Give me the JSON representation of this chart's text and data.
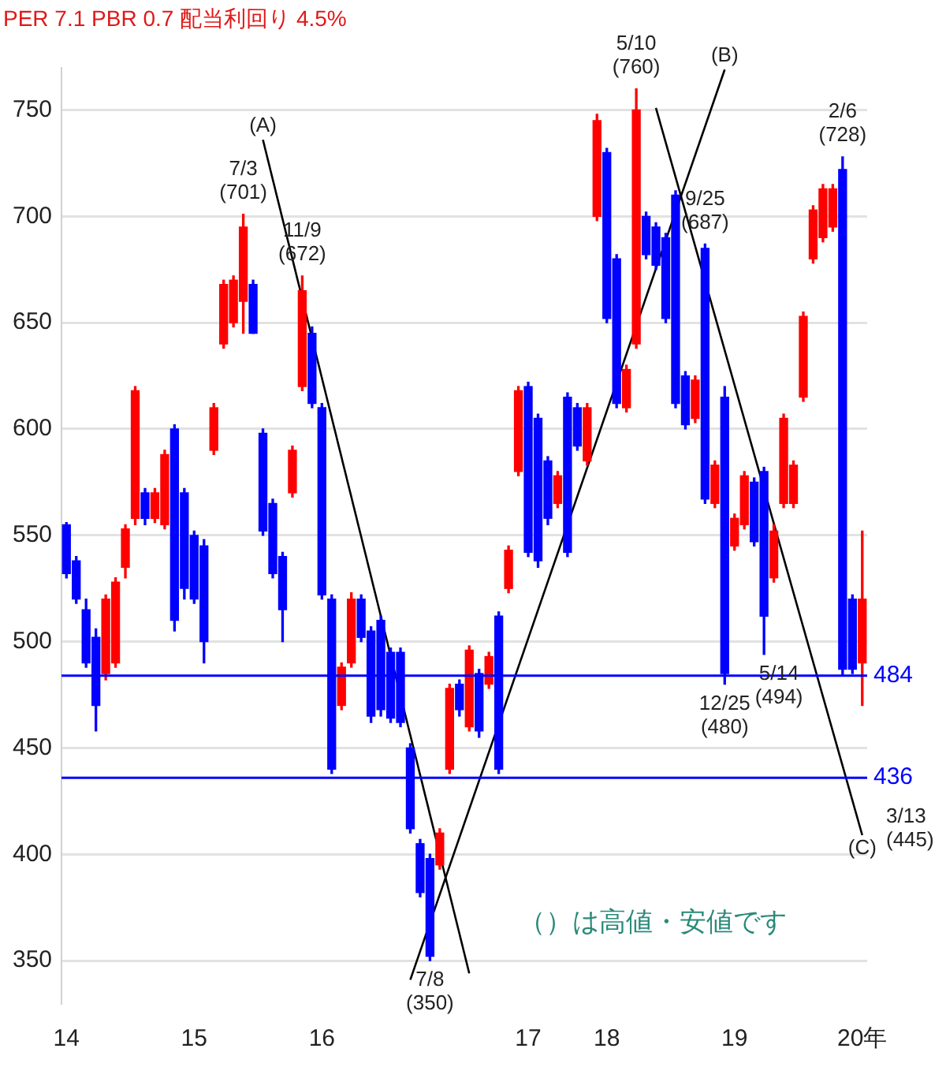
{
  "chart_data": {
    "type": "candlestick",
    "title": "PER 7.1 PBR 0.7 配当利回り 4.5%",
    "categories": [
      "14",
      null,
      null,
      null,
      null,
      null,
      null,
      null,
      null,
      null,
      null,
      null,
      null,
      "15",
      null,
      null,
      null,
      null,
      null,
      null,
      null,
      null,
      null,
      null,
      null,
      null,
      "16",
      null,
      null,
      null,
      null,
      null,
      null,
      null,
      null,
      null,
      null,
      null,
      null,
      null,
      null,
      null,
      null,
      null,
      null,
      null,
      null,
      "17",
      null,
      null,
      null,
      null,
      null,
      null,
      null,
      "18",
      null,
      null,
      null,
      null,
      null,
      null,
      null,
      null,
      null,
      null,
      null,
      null,
      "19",
      null,
      null,
      null,
      null,
      null,
      null,
      null,
      null,
      null,
      null,
      null,
      null,
      "20年"
    ],
    "ohlc": [
      [
        555,
        556,
        530,
        532
      ],
      [
        538,
        540,
        518,
        520
      ],
      [
        515,
        520,
        488,
        490
      ],
      [
        502,
        506,
        458,
        470
      ],
      [
        485,
        522,
        482,
        520
      ],
      [
        490,
        530,
        488,
        528
      ],
      [
        535,
        555,
        530,
        553
      ],
      [
        558,
        620,
        555,
        618
      ],
      [
        570,
        572,
        555,
        558
      ],
      [
        558,
        572,
        556,
        570
      ],
      [
        555,
        590,
        553,
        588
      ],
      [
        600,
        602,
        505,
        510
      ],
      [
        570,
        572,
        520,
        525
      ],
      [
        550,
        552,
        518,
        520
      ],
      [
        545,
        548,
        490,
        500
      ],
      [
        590,
        612,
        588,
        610
      ],
      [
        640,
        670,
        638,
        668
      ],
      [
        650,
        672,
        648,
        670
      ],
      [
        660,
        701,
        645,
        695
      ],
      [
        668,
        670,
        645,
        645
      ],
      [
        598,
        600,
        550,
        552
      ],
      [
        565,
        567,
        530,
        532
      ],
      [
        540,
        542,
        500,
        515
      ],
      [
        570,
        592,
        568,
        590
      ],
      [
        620,
        672,
        618,
        665
      ],
      [
        645,
        648,
        610,
        612
      ],
      [
        610,
        612,
        520,
        522
      ],
      [
        520,
        522,
        438,
        440
      ],
      [
        470,
        490,
        468,
        488
      ],
      [
        490,
        523,
        488,
        520
      ],
      [
        520,
        522,
        500,
        502
      ],
      [
        505,
        507,
        462,
        465
      ],
      [
        510,
        512,
        465,
        468
      ],
      [
        495,
        497,
        462,
        464
      ],
      [
        495,
        497,
        460,
        462
      ],
      [
        450,
        452,
        410,
        412
      ],
      [
        405,
        407,
        380,
        382
      ],
      [
        398,
        400,
        350,
        352
      ],
      [
        395,
        412,
        393,
        410
      ],
      [
        440,
        480,
        438,
        478
      ],
      [
        480,
        482,
        465,
        468
      ],
      [
        460,
        498,
        458,
        496
      ],
      [
        485,
        487,
        455,
        458
      ],
      [
        480,
        495,
        478,
        493
      ],
      [
        512,
        514,
        438,
        440
      ],
      [
        525,
        545,
        523,
        543
      ],
      [
        580,
        620,
        578,
        618
      ],
      [
        620,
        622,
        540,
        542
      ],
      [
        605,
        607,
        535,
        538
      ],
      [
        585,
        587,
        555,
        558
      ],
      [
        565,
        580,
        563,
        578
      ],
      [
        615,
        617,
        540,
        542
      ],
      [
        610,
        612,
        590,
        592
      ],
      [
        585,
        612,
        583,
        610
      ],
      [
        700,
        748,
        698,
        745
      ],
      [
        730,
        732,
        650,
        652
      ],
      [
        680,
        682,
        610,
        612
      ],
      [
        610,
        630,
        608,
        628
      ],
      [
        640,
        760,
        638,
        750
      ],
      [
        700,
        702,
        680,
        682
      ],
      [
        695,
        697,
        675,
        677
      ],
      [
        690,
        692,
        650,
        652
      ],
      [
        710,
        712,
        610,
        612
      ],
      [
        625,
        627,
        600,
        602
      ],
      [
        605,
        625,
        603,
        623
      ],
      [
        685,
        687,
        565,
        567
      ],
      [
        565,
        585,
        563,
        583
      ],
      [
        615,
        620,
        480,
        485
      ],
      [
        545,
        560,
        543,
        558
      ],
      [
        555,
        580,
        553,
        578
      ],
      [
        575,
        577,
        545,
        547
      ],
      [
        580,
        582,
        494,
        512
      ],
      [
        530,
        555,
        528,
        552
      ],
      [
        565,
        607,
        563,
        605
      ],
      [
        565,
        585,
        563,
        583
      ],
      [
        615,
        655,
        613,
        653
      ],
      [
        680,
        705,
        678,
        703
      ],
      [
        690,
        715,
        688,
        713
      ],
      [
        695,
        715,
        693,
        713
      ],
      [
        722,
        728,
        484,
        487
      ],
      [
        520,
        522,
        485,
        487
      ],
      [
        490,
        552,
        470,
        520
      ]
    ],
    "colors": [
      "#0000ff",
      "#0000ff",
      "#0000ff",
      "#0000ff",
      "#ff0000",
      "#ff0000",
      "#ff0000",
      "#ff0000",
      "#0000ff",
      "#ff0000",
      "#ff0000",
      "#0000ff",
      "#0000ff",
      "#0000ff",
      "#0000ff",
      "#ff0000",
      "#ff0000",
      "#ff0000",
      "#ff0000",
      "#0000ff",
      "#0000ff",
      "#0000ff",
      "#0000ff",
      "#ff0000",
      "#ff0000",
      "#0000ff",
      "#0000ff",
      "#0000ff",
      "#ff0000",
      "#ff0000",
      "#0000ff",
      "#0000ff",
      "#0000ff",
      "#0000ff",
      "#0000ff",
      "#0000ff",
      "#0000ff",
      "#0000ff",
      "#ff0000",
      "#ff0000",
      "#0000ff",
      "#ff0000",
      "#0000ff",
      "#ff0000",
      "#0000ff",
      "#ff0000",
      "#ff0000",
      "#0000ff",
      "#0000ff",
      "#0000ff",
      "#ff0000",
      "#0000ff",
      "#0000ff",
      "#ff0000",
      "#ff0000",
      "#0000ff",
      "#0000ff",
      "#ff0000",
      "#ff0000",
      "#0000ff",
      "#0000ff",
      "#0000ff",
      "#0000ff",
      "#0000ff",
      "#ff0000",
      "#0000ff",
      "#ff0000",
      "#0000ff",
      "#ff0000",
      "#ff0000",
      "#0000ff",
      "#0000ff",
      "#ff0000",
      "#ff0000",
      "#ff0000",
      "#ff0000",
      "#ff0000",
      "#ff0000",
      "#ff0000",
      "#0000ff",
      "#0000ff",
      "#ff0000"
    ],
    "value_labels": [
      null,
      null,
      null,
      null,
      null,
      null,
      null,
      null,
      null,
      null,
      null,
      null,
      null,
      null,
      null,
      null,
      null,
      null,
      "7/3 (701)",
      null,
      null,
      null,
      null,
      null,
      "11/9 (672)",
      null,
      null,
      null,
      null,
      null,
      null,
      null,
      null,
      null,
      null,
      null,
      null,
      "7/8 (350)",
      null,
      null,
      null,
      null,
      null,
      null,
      null,
      null,
      null,
      null,
      null,
      null,
      null,
      null,
      null,
      null,
      null,
      null,
      null,
      null,
      "5/10 (760)",
      null,
      null,
      null,
      null,
      null,
      null,
      "9/25 (687)",
      null,
      "12/25 (480)",
      null,
      null,
      null,
      "5/14 (494)",
      null,
      null,
      null,
      null,
      null,
      null,
      null,
      "2/6 (728)",
      null,
      null
    ],
    "series": [
      {
        "type": "line",
        "name": "(A)",
        "color": "#000000",
        "values": [
          null,
          null,
          null,
          null,
          null,
          null,
          null,
          null,
          null,
          null,
          null,
          null,
          null,
          null,
          null,
          null,
          null,
          null,
          null,
          null,
          736,
          null,
          null,
          null,
          null,
          null,
          null,
          null,
          null,
          null,
          null,
          null,
          null,
          null,
          null,
          null,
          null,
          null,
          null,
          null,
          null,
          344,
          null,
          null,
          null,
          null,
          null,
          null,
          null,
          null,
          null,
          null,
          null,
          null,
          null,
          null,
          null,
          null,
          null,
          null,
          null,
          null,
          null,
          null,
          null,
          null,
          null,
          null,
          null,
          null,
          null,
          null,
          null,
          null,
          null,
          null,
          null,
          null,
          null,
          null,
          null,
          null
        ]
      },
      {
        "type": "line",
        "name": "(B)",
        "color": "#000000",
        "values": [
          null,
          null,
          null,
          null,
          null,
          null,
          null,
          null,
          null,
          null,
          null,
          null,
          null,
          null,
          null,
          null,
          null,
          null,
          null,
          null,
          null,
          null,
          null,
          null,
          null,
          null,
          null,
          null,
          null,
          null,
          null,
          null,
          null,
          null,
          null,
          341,
          null,
          null,
          null,
          null,
          null,
          null,
          null,
          null,
          null,
          null,
          null,
          null,
          null,
          null,
          null,
          null,
          null,
          null,
          null,
          null,
          null,
          null,
          null,
          null,
          null,
          null,
          null,
          null,
          null,
          null,
          null,
          769,
          null,
          null,
          null,
          null,
          null,
          null,
          null,
          null,
          null,
          null,
          null,
          null,
          null,
          null
        ]
      },
      {
        "type": "line",
        "name": "(C)",
        "color": "#000000",
        "values": [
          null,
          null,
          null,
          null,
          null,
          null,
          null,
          null,
          null,
          null,
          null,
          null,
          null,
          null,
          null,
          null,
          null,
          null,
          null,
          null,
          null,
          null,
          null,
          null,
          null,
          null,
          null,
          null,
          null,
          null,
          null,
          null,
          null,
          null,
          null,
          null,
          null,
          null,
          null,
          null,
          null,
          null,
          null,
          null,
          null,
          null,
          null,
          null,
          null,
          null,
          null,
          null,
          null,
          null,
          null,
          null,
          null,
          null,
          null,
          null,
          751,
          null,
          null,
          null,
          null,
          null,
          null,
          null,
          null,
          null,
          null,
          null,
          null,
          null,
          null,
          null,
          null,
          null,
          null,
          null,
          null,
          409
        ]
      }
    ],
    "ref_lines": [
      {
        "axis": "y",
        "value": 484,
        "label": "484",
        "color": "#0000ff"
      },
      {
        "axis": "y",
        "value": 436,
        "label": "436",
        "color": "#0000ff"
      }
    ],
    "annotations": [
      "（）は高値・安値です",
      "3/13 (445)"
    ],
    "ylim": [
      330,
      770
    ],
    "yticks": [
      350,
      400,
      450,
      500,
      550,
      600,
      650,
      700,
      750
    ],
    "grid": "y"
  }
}
